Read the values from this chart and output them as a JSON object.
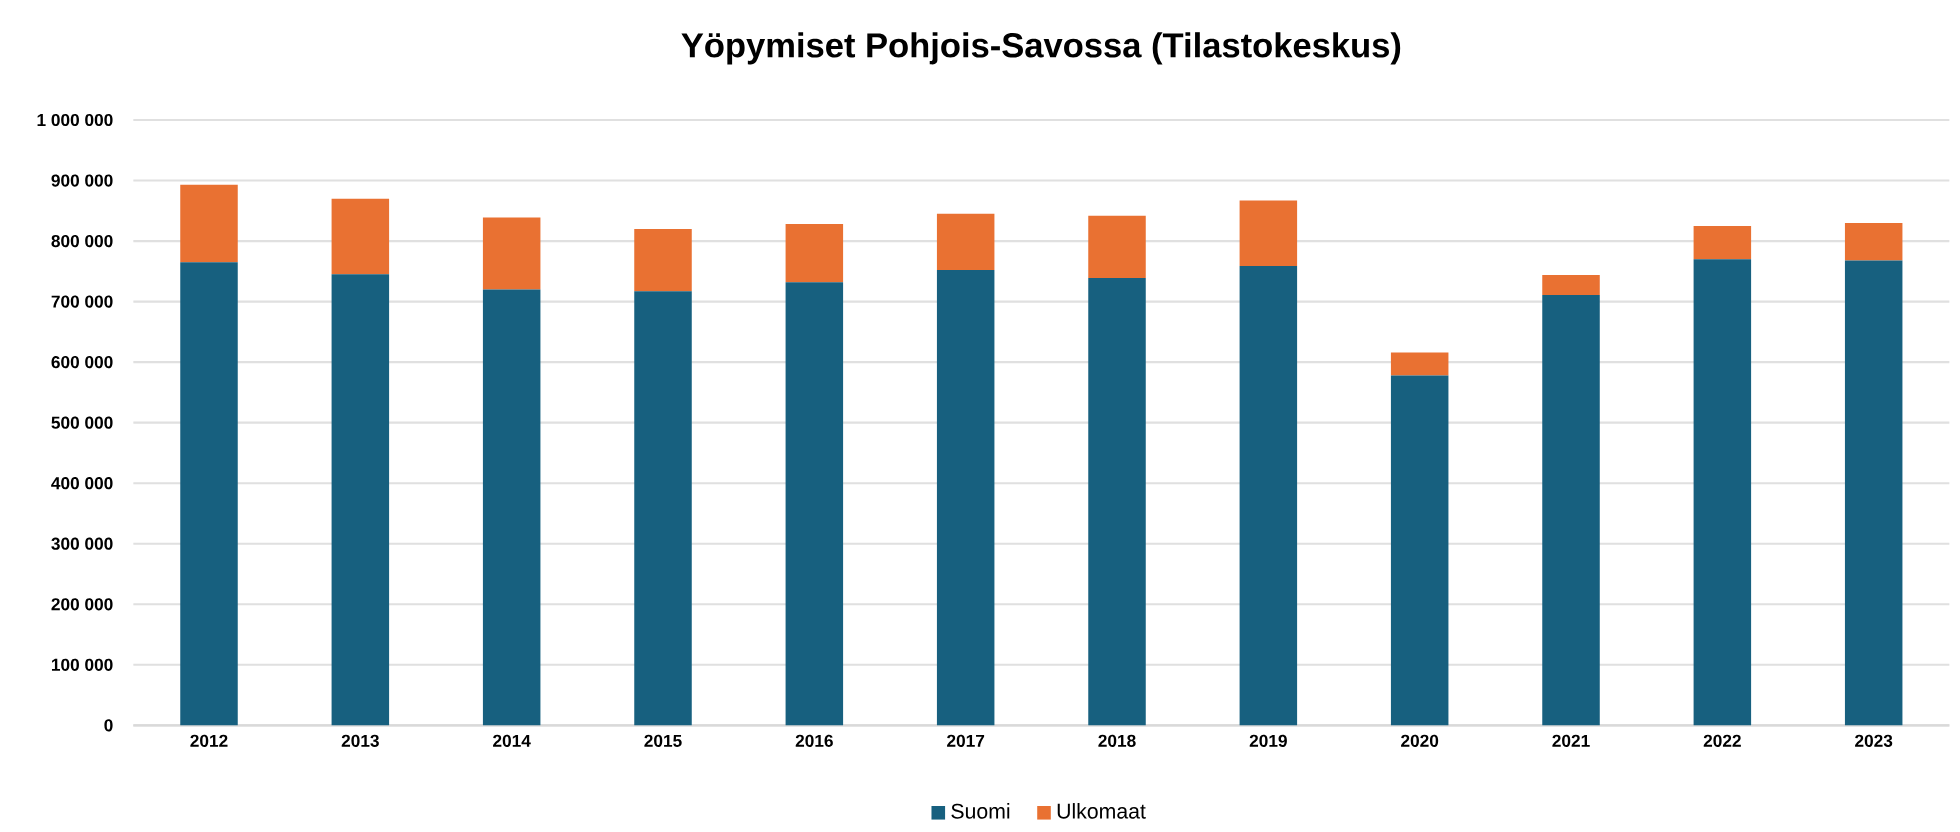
{
  "chart_data": {
    "type": "bar",
    "title": "Yöpymiset Pohjois-Savossa (Tilastokeskus)",
    "stacked": true,
    "categories": [
      "2012",
      "2013",
      "2014",
      "2015",
      "2016",
      "2017",
      "2018",
      "2019",
      "2020",
      "2021",
      "2022",
      "2023"
    ],
    "series": [
      {
        "name": "Suomi",
        "color": "#17607f",
        "values": [
          765000,
          745000,
          720000,
          717000,
          732000,
          752000,
          739000,
          759000,
          578000,
          711000,
          770000,
          768000
        ]
      },
      {
        "name": "Ulkomaat",
        "color": "#e97132",
        "values": [
          128000,
          125000,
          119000,
          103000,
          96000,
          93000,
          103000,
          108000,
          38000,
          33000,
          55000,
          62000
        ]
      }
    ],
    "ylim": [
      0,
      1000000
    ],
    "yticks": [
      0,
      {
        "value": 100000,
        "label": "100 000"
      },
      {
        "value": 200000,
        "label": "200 000"
      },
      {
        "value": 300000,
        "label": "300 000"
      },
      {
        "value": 400000,
        "label": "400 000"
      },
      {
        "value": 500000,
        "label": "500 000"
      },
      {
        "value": 600000,
        "label": "600 000"
      },
      {
        "value": 700000,
        "label": "700 000"
      },
      {
        "value": 800000,
        "label": "800 000"
      },
      {
        "value": 900000,
        "label": "900 000"
      },
      {
        "value": 1000000,
        "label": "1 000 000"
      }
    ],
    "grid": "y",
    "legend": "bottom"
  }
}
